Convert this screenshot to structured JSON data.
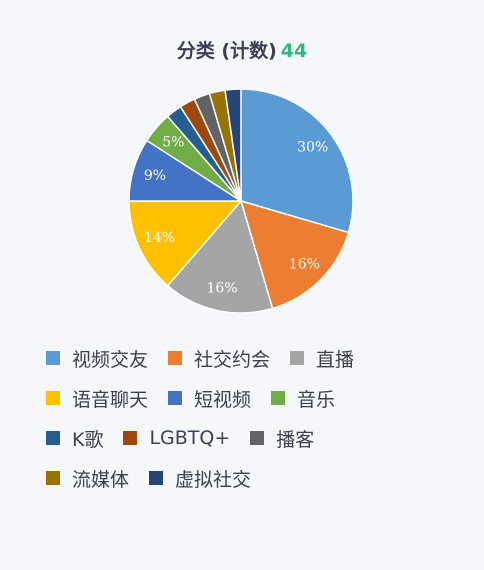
{
  "header": {
    "title": "分类 (计数)",
    "count": "44"
  },
  "legend_rows": [
    [
      0,
      1,
      2
    ],
    [
      3,
      4,
      5
    ],
    [
      6,
      7,
      8
    ],
    [
      9,
      10
    ]
  ],
  "chart_data": {
    "type": "pie",
    "title": "分类 (计数) 44",
    "total": 44,
    "slice_labels": [
      "30%",
      "16%",
      "16%",
      "14%",
      "9%",
      "5%",
      "",
      "",
      "",
      "",
      ""
    ],
    "series": [
      {
        "name": "视频交友",
        "value": 13,
        "color": "#5b9bd5"
      },
      {
        "name": "社交约会",
        "value": 7,
        "color": "#ed7d31"
      },
      {
        "name": "直播",
        "value": 7,
        "color": "#a5a5a5"
      },
      {
        "name": "语音聊天",
        "value": 6,
        "color": "#ffc000"
      },
      {
        "name": "短视频",
        "value": 4,
        "color": "#4472c4"
      },
      {
        "name": "音乐",
        "value": 2,
        "color": "#70ad47"
      },
      {
        "name": "K歌",
        "value": 1,
        "color": "#255e91"
      },
      {
        "name": "LGBTQ+",
        "value": 1,
        "color": "#9e480e"
      },
      {
        "name": "播客",
        "value": 1,
        "color": "#636363"
      },
      {
        "name": "流媒体",
        "value": 1,
        "color": "#997300"
      },
      {
        "name": "虚拟社交",
        "value": 1,
        "color": "#264478"
      }
    ]
  }
}
